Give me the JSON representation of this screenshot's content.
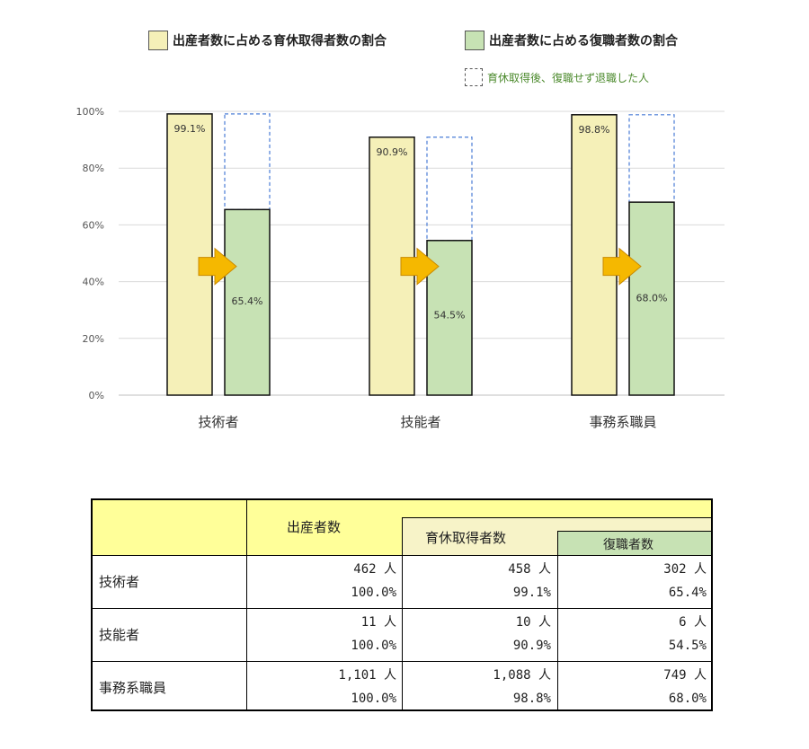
{
  "legend": {
    "leave": "出産者数に占める育休取得者数の割合",
    "return": "出産者数に占める復職者数の割合",
    "left": "育休取得後、復職せず退職した人"
  },
  "colors": {
    "leave": "#f5f0b8",
    "return": "#c7e2b4",
    "dashed": "#4a7cd6",
    "arrow": "#f5b800",
    "table_header": "#ffff99",
    "table_sub1": "#f7f3c8",
    "table_sub2": "#c7e2b4"
  },
  "chart_data": {
    "type": "bar",
    "categories": [
      "技術者",
      "技能者",
      "事務系職員"
    ],
    "series": [
      {
        "name": "出産者数に占める育休取得者数の割合",
        "values": [
          99.1,
          90.9,
          98.8
        ],
        "labels": [
          "99.1%",
          "90.9%",
          "98.8%"
        ]
      },
      {
        "name": "出産者数に占める復職者数の割合",
        "values": [
          65.4,
          54.5,
          68.0
        ],
        "labels": [
          "65.4%",
          "54.5%",
          "68.0%"
        ]
      }
    ],
    "ylim": [
      0,
      100
    ],
    "yticks": [
      "0%",
      "20%",
      "40%",
      "60%",
      "80%",
      "100%"
    ],
    "grid": true,
    "legend": "top",
    "annotations": "dashed outline above each green bar up to the yellow bar height; yellow arrow between bars"
  },
  "table": {
    "headers": {
      "births": "出産者数",
      "leave": "育休取得者数",
      "return": "復職者数"
    },
    "rows": [
      {
        "label": "技術者",
        "births": "462 人",
        "births_pct": "100.0%",
        "leave": "458 人",
        "leave_pct": "99.1%",
        "return": "302 人",
        "return_pct": "65.4%"
      },
      {
        "label": "技能者",
        "births": "11 人",
        "births_pct": "100.0%",
        "leave": "10 人",
        "leave_pct": "90.9%",
        "return": "6 人",
        "return_pct": "54.5%"
      },
      {
        "label": "事務系職員",
        "births": "1,101 人",
        "births_pct": "100.0%",
        "leave": "1,088 人",
        "leave_pct": "98.8%",
        "return": "749 人",
        "return_pct": "68.0%"
      }
    ]
  }
}
